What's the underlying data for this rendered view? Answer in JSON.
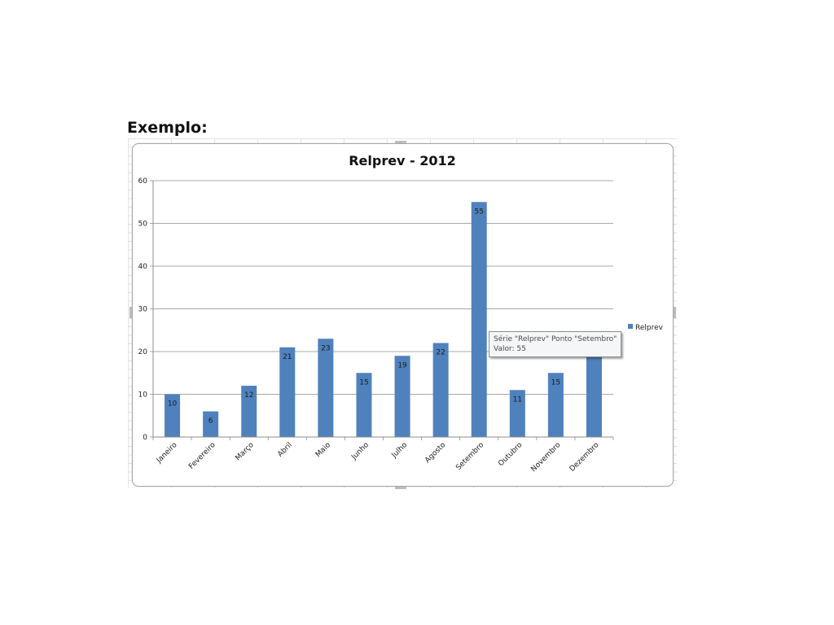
{
  "page": {
    "heading": "Exemplo:"
  },
  "chart_data": {
    "type": "bar",
    "title": "Relprev - 2012",
    "categories": [
      "Janeiro",
      "Fevereiro",
      "Março",
      "Abril",
      "Maio",
      "Junho",
      "Julho",
      "Agosto",
      "Setembro",
      "Outubro",
      "Novembro",
      "Dezembro"
    ],
    "series": [
      {
        "name": "Relprev",
        "values": [
          10,
          6,
          12,
          21,
          23,
          15,
          19,
          22,
          55,
          11,
          15,
          22
        ],
        "color": "#4f81bd"
      }
    ],
    "ylim": [
      0,
      60
    ],
    "yticks": [
      0,
      10,
      20,
      30,
      40,
      50,
      60
    ],
    "xlabel": "",
    "ylabel": "",
    "grid": true,
    "legend": "right",
    "data_labels": true
  },
  "tooltip": {
    "line1": "Série \"Relprev\" Ponto \"Setembro\"",
    "line2": "Valor: 55"
  }
}
